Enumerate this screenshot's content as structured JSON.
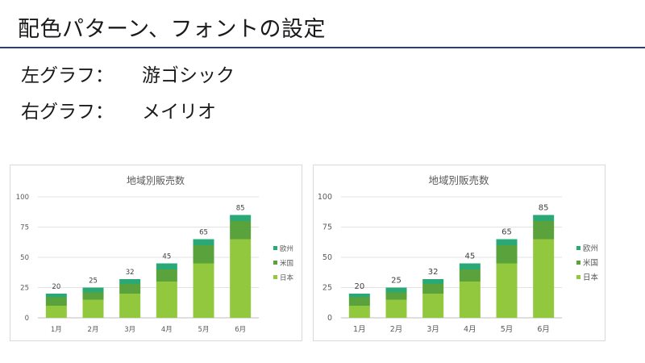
{
  "slide": {
    "title": "配色パターン、フォントの設定",
    "left_label": "左グラフ：",
    "left_font": "游ゴシック",
    "right_label": "右グラフ：",
    "right_font": "メイリオ"
  },
  "colors": {
    "日本": "#92c83e",
    "米国": "#5aa23c",
    "欧州": "#2aa876",
    "title_rule": "#2e3f6e"
  },
  "chart_data": [
    {
      "type": "bar",
      "stacked": true,
      "title": "地域別販売数",
      "categories": [
        "1月",
        "2月",
        "3月",
        "4月",
        "5月",
        "6月"
      ],
      "series": [
        {
          "name": "日本",
          "values": [
            10,
            15,
            20,
            30,
            45,
            65
          ]
        },
        {
          "name": "米国",
          "values": [
            7,
            6,
            8,
            10,
            15,
            15
          ]
        },
        {
          "name": "欧州",
          "values": [
            3,
            4,
            4,
            5,
            5,
            5
          ]
        }
      ],
      "totals": [
        20,
        25,
        32,
        45,
        65,
        85
      ],
      "yticks": [
        0,
        25,
        50,
        75,
        100
      ],
      "ylim": [
        0,
        100
      ],
      "grid": true,
      "legend": "right"
    },
    {
      "type": "bar",
      "stacked": true,
      "title": "地域別販売数",
      "categories": [
        "1月",
        "2月",
        "3月",
        "4月",
        "5月",
        "6月"
      ],
      "series": [
        {
          "name": "日本",
          "values": [
            10,
            15,
            20,
            30,
            45,
            65
          ]
        },
        {
          "name": "米国",
          "values": [
            7,
            6,
            8,
            10,
            15,
            15
          ]
        },
        {
          "name": "欧州",
          "values": [
            3,
            4,
            4,
            5,
            5,
            5
          ]
        }
      ],
      "totals": [
        20,
        25,
        32,
        45,
        65,
        85
      ],
      "yticks": [
        0,
        25,
        50,
        75,
        100
      ],
      "ylim": [
        0,
        100
      ],
      "grid": true,
      "legend": "right"
    }
  ]
}
